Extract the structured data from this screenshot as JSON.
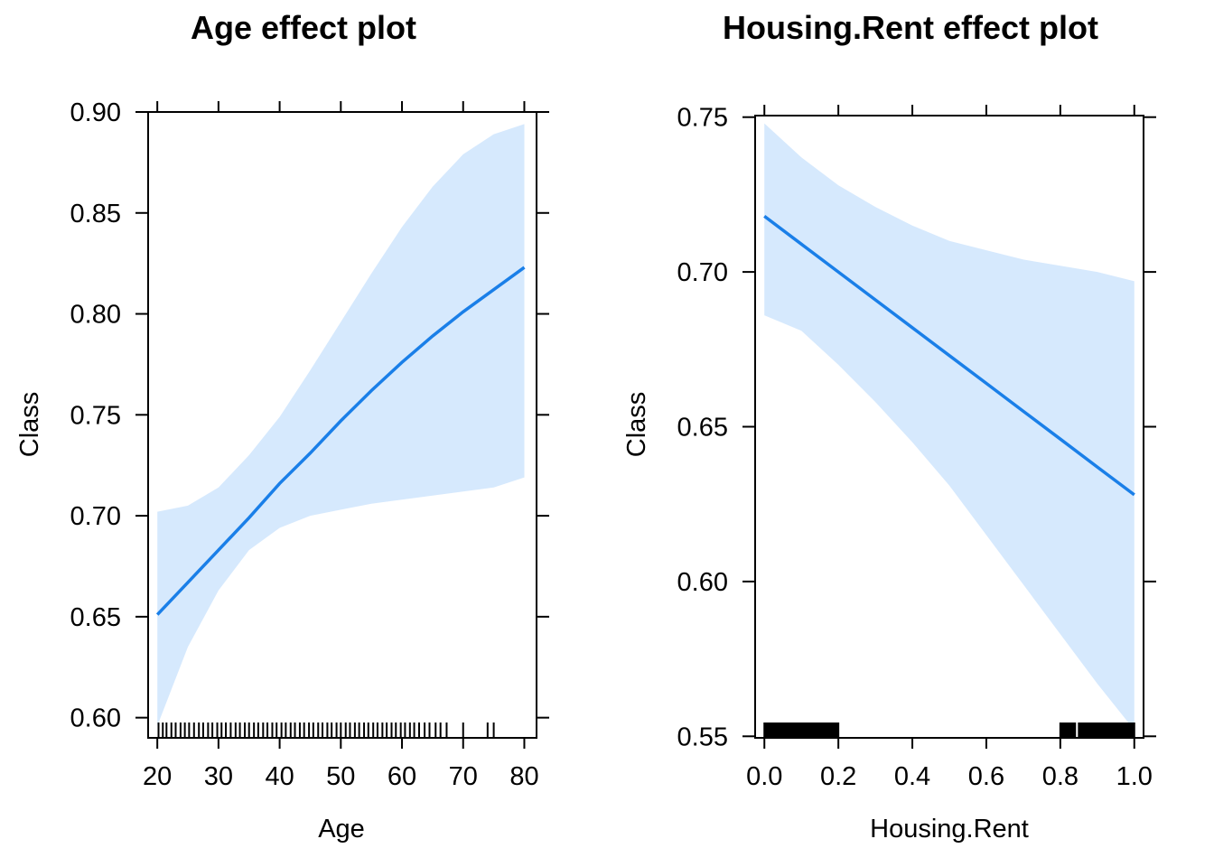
{
  "chart_data": [
    {
      "type": "line",
      "title": "Age effect plot",
      "xlabel": "Age",
      "ylabel": "Class",
      "xlim": [
        18.5,
        82
      ],
      "ylim": [
        0.59,
        0.9
      ],
      "x_ticks": [
        20,
        30,
        40,
        50,
        60,
        70,
        80
      ],
      "x_tick_labels": [
        "20",
        "30",
        "40",
        "50",
        "60",
        "70",
        "80"
      ],
      "y_ticks": [
        0.6,
        0.65,
        0.7,
        0.75,
        0.8,
        0.85,
        0.9
      ],
      "y_tick_labels": [
        "0.60",
        "0.65",
        "0.70",
        "0.75",
        "0.80",
        "0.85",
        "0.90"
      ],
      "grid": false,
      "line_color": "#1a7fe8",
      "band_color": "#d6e9fd",
      "series": [
        {
          "x": [
            20,
            25,
            30,
            35,
            40,
            45,
            50,
            55,
            60,
            65,
            70,
            75,
            80
          ],
          "fit": [
            0.651,
            0.667,
            0.683,
            0.699,
            0.716,
            0.731,
            0.747,
            0.762,
            0.776,
            0.789,
            0.801,
            0.812,
            0.823
          ],
          "lower": [
            0.596,
            0.635,
            0.663,
            0.683,
            0.694,
            0.7,
            0.703,
            0.706,
            0.708,
            0.71,
            0.712,
            0.714,
            0.719
          ],
          "upper": [
            0.702,
            0.705,
            0.714,
            0.73,
            0.749,
            0.772,
            0.796,
            0.82,
            0.843,
            0.863,
            0.879,
            0.889,
            0.894
          ]
        }
      ],
      "rug": [
        20.2,
        20.9,
        21.5,
        22.3,
        23.0,
        23.8,
        24.5,
        25.2,
        26.0,
        26.8,
        27.5,
        28.3,
        29.0,
        29.8,
        30.5,
        31.2,
        32.0,
        32.8,
        33.5,
        34.3,
        35.0,
        35.8,
        36.5,
        37.3,
        38.0,
        38.8,
        39.5,
        40.3,
        41.0,
        41.8,
        42.5,
        43.3,
        44.0,
        44.8,
        45.5,
        46.3,
        47.0,
        47.8,
        48.5,
        49.3,
        50.0,
        50.8,
        51.5,
        52.3,
        53.0,
        53.8,
        54.5,
        55.3,
        56.0,
        56.8,
        57.5,
        58.3,
        59.0,
        59.8,
        60.5,
        61.3,
        62.0,
        62.8,
        63.7,
        64.5,
        65.5,
        66.3,
        67.3,
        70.0,
        74.0,
        75.0
      ]
    },
    {
      "type": "line",
      "title": "Housing.Rent effect plot",
      "xlabel": "Housing.Rent",
      "ylabel": "Class",
      "xlim": [
        -0.025,
        1.025
      ],
      "ylim": [
        0.5495,
        0.7505
      ],
      "x_ticks": [
        0,
        0.2,
        0.4,
        0.6,
        0.8,
        1.0
      ],
      "x_tick_labels": [
        "0.0",
        "0.2",
        "0.4",
        "0.6",
        "0.8",
        "1.0"
      ],
      "y_ticks": [
        0.55,
        0.6,
        0.65,
        0.7,
        0.75
      ],
      "y_tick_labels": [
        "0.55",
        "0.60",
        "0.65",
        "0.70",
        "0.75"
      ],
      "grid": false,
      "line_color": "#1a7fe8",
      "band_color": "#d6e9fd",
      "series": [
        {
          "x": [
            0.0,
            0.1,
            0.2,
            0.3,
            0.4,
            0.5,
            0.6,
            0.7,
            0.8,
            0.9,
            1.0
          ],
          "fit": [
            0.718,
            0.709,
            0.7,
            0.691,
            0.682,
            0.673,
            0.664,
            0.655,
            0.646,
            0.637,
            0.628
          ],
          "lower": [
            0.686,
            0.681,
            0.67,
            0.658,
            0.645,
            0.631,
            0.615,
            0.599,
            0.583,
            0.567,
            0.552
          ],
          "upper": [
            0.748,
            0.737,
            0.728,
            0.721,
            0.715,
            0.71,
            0.707,
            0.704,
            0.702,
            0.7,
            0.697
          ]
        }
      ],
      "rug_segments": [
        [
          0.0,
          0.2
        ],
        [
          0.8,
          0.84
        ],
        [
          0.85,
          1.0
        ]
      ]
    }
  ]
}
